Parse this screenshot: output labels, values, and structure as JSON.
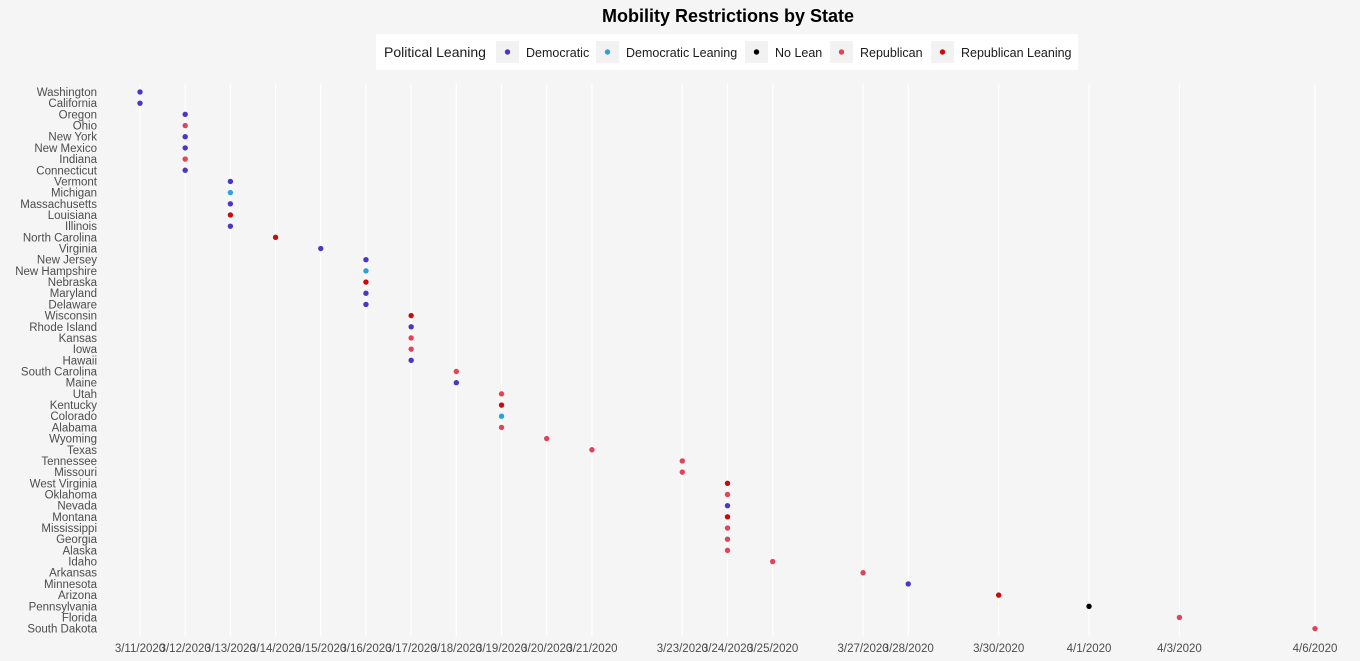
{
  "chart_data": {
    "type": "scatter",
    "title": "Mobility Restrictions by State",
    "xlabel": "",
    "ylabel": "",
    "grid": "vertical",
    "legend_position": "top",
    "legend": {
      "title": "Political Leaning",
      "entries": [
        {
          "label": "Democratic",
          "color": "#4b37c6"
        },
        {
          "label": "Democratic Leaning",
          "color": "#2fa0dc"
        },
        {
          "label": "No Lean",
          "color": "#000000"
        },
        {
          "label": "Republican",
          "color": "#e0435a"
        },
        {
          "label": "Republican Leaning",
          "color": "#cc0a0a"
        }
      ]
    },
    "x_ticks": [
      "3/11/2020",
      "3/12/2020",
      "3/13/2020",
      "3/14/2020",
      "3/15/2020",
      "3/16/2020",
      "3/17/2020",
      "3/18/2020",
      "3/19/2020",
      "3/20/2020",
      "3/21/2020",
      "3/23/2020",
      "3/24/2020",
      "3/25/2020",
      "3/27/2020",
      "3/28/2020",
      "3/30/2020",
      "4/1/2020",
      "4/3/2020",
      "4/6/2020"
    ],
    "points": [
      {
        "state": "Washington",
        "date": "3/11/2020",
        "leaning": "Democratic"
      },
      {
        "state": "California",
        "date": "3/11/2020",
        "leaning": "Democratic"
      },
      {
        "state": "Oregon",
        "date": "3/12/2020",
        "leaning": "Democratic"
      },
      {
        "state": "Ohio",
        "date": "3/12/2020",
        "leaning": "Republican"
      },
      {
        "state": "New York",
        "date": "3/12/2020",
        "leaning": "Democratic"
      },
      {
        "state": "New Mexico",
        "date": "3/12/2020",
        "leaning": "Democratic"
      },
      {
        "state": "Indiana",
        "date": "3/12/2020",
        "leaning": "Republican"
      },
      {
        "state": "Connecticut",
        "date": "3/12/2020",
        "leaning": "Democratic"
      },
      {
        "state": "Vermont",
        "date": "3/13/2020",
        "leaning": "Democratic"
      },
      {
        "state": "Michigan",
        "date": "3/13/2020",
        "leaning": "Democratic Leaning"
      },
      {
        "state": "Massachusetts",
        "date": "3/13/2020",
        "leaning": "Democratic"
      },
      {
        "state": "Louisiana",
        "date": "3/13/2020",
        "leaning": "Republican Leaning"
      },
      {
        "state": "Illinois",
        "date": "3/13/2020",
        "leaning": "Democratic"
      },
      {
        "state": "North Carolina",
        "date": "3/14/2020",
        "leaning": "Republican Leaning"
      },
      {
        "state": "Virginia",
        "date": "3/15/2020",
        "leaning": "Democratic"
      },
      {
        "state": "New Jersey",
        "date": "3/16/2020",
        "leaning": "Democratic"
      },
      {
        "state": "New Hampshire",
        "date": "3/16/2020",
        "leaning": "Democratic Leaning"
      },
      {
        "state": "Nebraska",
        "date": "3/16/2020",
        "leaning": "Republican Leaning"
      },
      {
        "state": "Maryland",
        "date": "3/16/2020",
        "leaning": "Democratic"
      },
      {
        "state": "Delaware",
        "date": "3/16/2020",
        "leaning": "Democratic"
      },
      {
        "state": "Wisconsin",
        "date": "3/17/2020",
        "leaning": "Republican Leaning"
      },
      {
        "state": "Rhode Island",
        "date": "3/17/2020",
        "leaning": "Democratic"
      },
      {
        "state": "Kansas",
        "date": "3/17/2020",
        "leaning": "Republican"
      },
      {
        "state": "Iowa",
        "date": "3/17/2020",
        "leaning": "Republican"
      },
      {
        "state": "Hawaii",
        "date": "3/17/2020",
        "leaning": "Democratic"
      },
      {
        "state": "South Carolina",
        "date": "3/18/2020",
        "leaning": "Republican"
      },
      {
        "state": "Maine",
        "date": "3/18/2020",
        "leaning": "Democratic"
      },
      {
        "state": "Utah",
        "date": "3/19/2020",
        "leaning": "Republican"
      },
      {
        "state": "Kentucky",
        "date": "3/19/2020",
        "leaning": "Republican Leaning"
      },
      {
        "state": "Colorado",
        "date": "3/19/2020",
        "leaning": "Democratic Leaning"
      },
      {
        "state": "Alabama",
        "date": "3/19/2020",
        "leaning": "Republican"
      },
      {
        "state": "Wyoming",
        "date": "3/20/2020",
        "leaning": "Republican"
      },
      {
        "state": "Texas",
        "date": "3/21/2020",
        "leaning": "Republican"
      },
      {
        "state": "Tennessee",
        "date": "3/23/2020",
        "leaning": "Republican"
      },
      {
        "state": "Missouri",
        "date": "3/23/2020",
        "leaning": "Republican"
      },
      {
        "state": "West Virginia",
        "date": "3/24/2020",
        "leaning": "Republican Leaning"
      },
      {
        "state": "Oklahoma",
        "date": "3/24/2020",
        "leaning": "Republican"
      },
      {
        "state": "Nevada",
        "date": "3/24/2020",
        "leaning": "Democratic"
      },
      {
        "state": "Montana",
        "date": "3/24/2020",
        "leaning": "Republican Leaning"
      },
      {
        "state": "Mississippi",
        "date": "3/24/2020",
        "leaning": "Republican"
      },
      {
        "state": "Georgia",
        "date": "3/24/2020",
        "leaning": "Republican"
      },
      {
        "state": "Alaska",
        "date": "3/24/2020",
        "leaning": "Republican"
      },
      {
        "state": "Idaho",
        "date": "3/25/2020",
        "leaning": "Republican"
      },
      {
        "state": "Arkansas",
        "date": "3/27/2020",
        "leaning": "Republican"
      },
      {
        "state": "Minnesota",
        "date": "3/28/2020",
        "leaning": "Democratic"
      },
      {
        "state": "Arizona",
        "date": "3/30/2020",
        "leaning": "Republican Leaning"
      },
      {
        "state": "Pennsylvania",
        "date": "4/1/2020",
        "leaning": "No Lean"
      },
      {
        "state": "Florida",
        "date": "4/3/2020",
        "leaning": "Republican"
      },
      {
        "state": "South Dakota",
        "date": "4/6/2020",
        "leaning": "Republican"
      }
    ]
  }
}
